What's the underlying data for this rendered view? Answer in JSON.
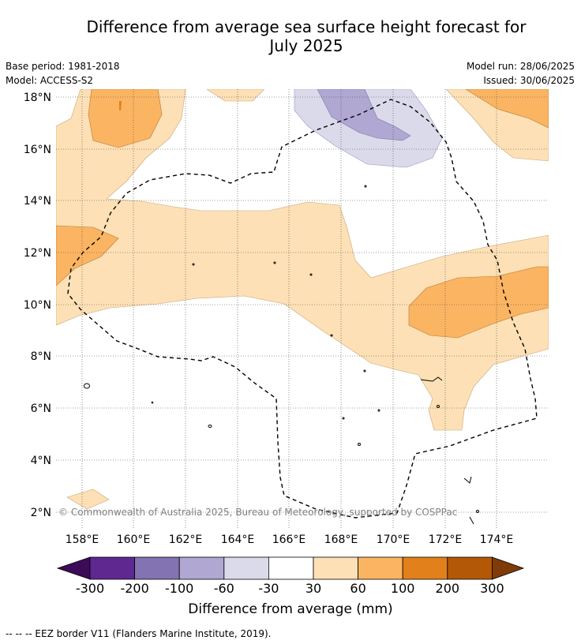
{
  "title_line1": "Difference from average sea surface height forecast for",
  "title_line2": "July 2025",
  "meta": {
    "base_period": "Base period: 1981-2018",
    "model": "Model: ACCESS-S2",
    "model_run": "Model run: 28/06/2025",
    "issued": "Issued: 30/06/2025"
  },
  "map": {
    "lat_labels": [
      "18°N",
      "16°N",
      "14°N",
      "12°N",
      "10°N",
      "8°N",
      "6°N",
      "4°N",
      "2°N"
    ],
    "lon_labels": [
      "158°E",
      "160°E",
      "162°E",
      "164°E",
      "166°E",
      "168°E",
      "170°E",
      "172°E",
      "174°E"
    ],
    "copyright": "© Commonwealth of Australia 2025, Bureau of Meteorology, supported by COSPPac"
  },
  "colorbar": {
    "ticks": [
      "-300",
      "-200",
      "-100",
      "-60",
      "-30",
      "30",
      "60",
      "100",
      "200",
      "300"
    ],
    "colors": [
      "#3d0a57",
      "#5e2890",
      "#8373b3",
      "#b0a7d2",
      "#dadaeb",
      "#ffffff",
      "#fde0b5",
      "#fbb462",
      "#e2811b",
      "#b35806",
      "#7f3b08"
    ],
    "label": "Difference from average (mm)"
  },
  "footnote": "--  --  -- EEZ border V11 (Flanders Marine Institute, 2019)."
}
